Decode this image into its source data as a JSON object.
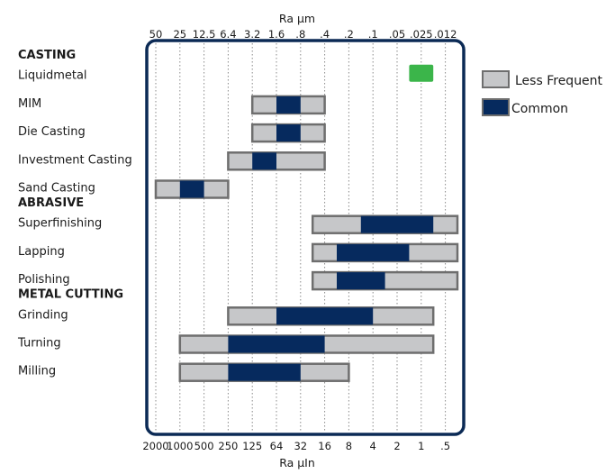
{
  "chart_data": {
    "type": "bar",
    "subtype": "range-bar",
    "top_axis_title": "Ra μm",
    "bottom_axis_title": "Ra μIn",
    "top_ticks": [
      "50",
      "25",
      "12.5",
      "6.4",
      "3.2",
      "1.6",
      ".8",
      ".4",
      ".2",
      ".1",
      ".05",
      ".025",
      ".012"
    ],
    "bottom_ticks": [
      "2000",
      "1000",
      "500",
      "250",
      "125",
      "64",
      "32",
      "16",
      "8",
      "4",
      "2",
      "1",
      ".5"
    ],
    "grid": "vertical dotted",
    "legend_position": "right",
    "legend": [
      {
        "key": "less_frequent",
        "label": "Less Frequent",
        "color": "#c6c7c9"
      },
      {
        "key": "common",
        "label": "Common",
        "color": "#062a5e"
      },
      {
        "key": "special",
        "color": "#3bb54a"
      }
    ],
    "groups": [
      {
        "name": "CASTING",
        "rows": [
          {
            "label": "Liquidmetal",
            "special": [
              10.5,
              11.5
            ]
          },
          {
            "label": "MIM",
            "less_frequent": [
              4,
              7
            ],
            "common": [
              5,
              6
            ]
          },
          {
            "label": "Die Casting",
            "less_frequent": [
              4,
              7
            ],
            "common": [
              5,
              6
            ]
          },
          {
            "label": "Investment Casting",
            "less_frequent": [
              3,
              7
            ],
            "common": [
              4,
              5
            ]
          },
          {
            "label": "Sand Casting",
            "less_frequent": [
              0,
              3
            ],
            "common": [
              1,
              2
            ]
          }
        ]
      },
      {
        "name": "ABRASIVE",
        "rows": [
          {
            "label": "Superfinishing",
            "less_frequent": [
              6.5,
              12.5
            ],
            "common": [
              8.5,
              11.5
            ]
          },
          {
            "label": "Lapping",
            "less_frequent": [
              6.5,
              12.5
            ],
            "common": [
              7.5,
              10.5
            ]
          },
          {
            "label": "Polishing",
            "less_frequent": [
              6.5,
              12.5
            ],
            "common": [
              7.5,
              9.5
            ]
          }
        ]
      },
      {
        "name": "METAL CUTTING",
        "rows": [
          {
            "label": "Grinding",
            "less_frequent": [
              3,
              11.5
            ],
            "common": [
              5,
              9
            ]
          },
          {
            "label": "Turning",
            "less_frequent": [
              1,
              11.5
            ],
            "common": [
              3,
              7
            ]
          },
          {
            "label": "Milling",
            "less_frequent": [
              1,
              8
            ],
            "common": [
              3,
              6
            ]
          }
        ]
      }
    ]
  }
}
